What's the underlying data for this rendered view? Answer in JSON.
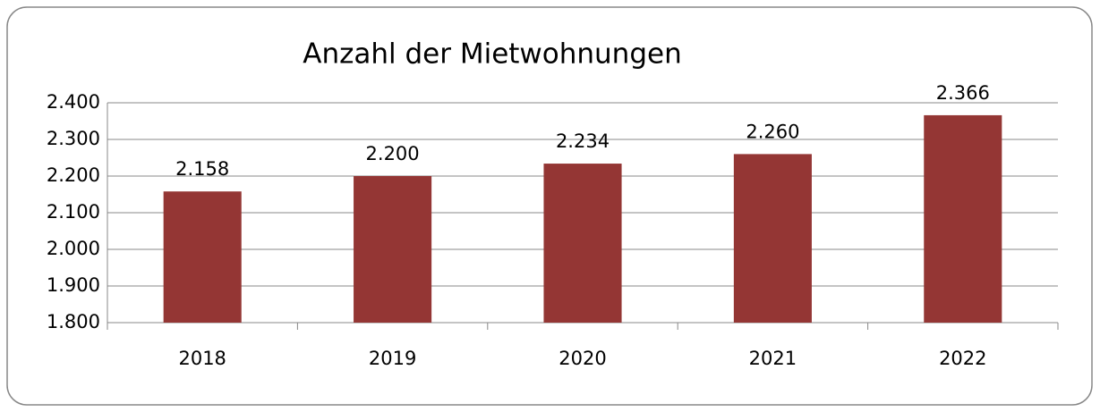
{
  "chart_data": {
    "type": "bar",
    "title": "Anzahl der Mietwohnungen",
    "categories": [
      "2018",
      "2019",
      "2020",
      "2021",
      "2022"
    ],
    "values": [
      2158,
      2200,
      2234,
      2260,
      2366
    ],
    "value_labels": [
      "2.158",
      "2.200",
      "2.234",
      "2.260",
      "2.366"
    ],
    "color": "#943634",
    "ylim": [
      1800,
      2400
    ],
    "yticks": [
      {
        "value": 1800,
        "label": "1.800"
      },
      {
        "value": 1900,
        "label": "1.900"
      },
      {
        "value": 2000,
        "label": "2.000"
      },
      {
        "value": 2100,
        "label": "2.100"
      },
      {
        "value": 2200,
        "label": "2.200"
      },
      {
        "value": 2300,
        "label": "2.300"
      },
      {
        "value": 2400,
        "label": "2.400"
      }
    ],
    "grid": true
  }
}
